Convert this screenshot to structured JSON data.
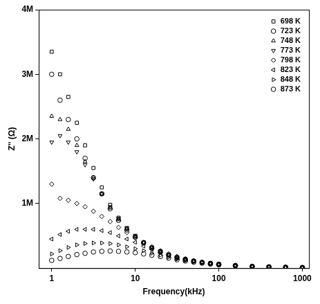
{
  "chart_data": {
    "type": "scatter",
    "x_label": "Frequency(kHz)",
    "y_label": "Z'' (Ω)",
    "log": "x",
    "grid": false,
    "legend": "upper right",
    "xlim": [
      0.72,
      1200
    ],
    "xticks": [
      1,
      10,
      100,
      1000
    ],
    "ylim": [
      0,
      4000000
    ],
    "yticks": [
      {
        "value": 1000000,
        "label": "1M"
      },
      {
        "value": 2000000,
        "label": "2M"
      },
      {
        "value": 3000000,
        "label": "3M"
      },
      {
        "value": 4000000,
        "label": "4M"
      }
    ],
    "x": [
      1,
      1.26,
      1.58,
      2,
      2.51,
      3.16,
      3.98,
      5.01,
      6.31,
      7.94,
      10,
      12.6,
      15.8,
      20,
      25.1,
      31.6,
      39.8,
      50.1,
      63.1,
      79.4,
      100,
      158,
      251,
      398,
      631,
      1000
    ],
    "series": [
      {
        "name": "698 K",
        "color": "#000000",
        "marker": "square",
        "values": [
          3350000,
          3000000,
          2650000,
          2250000,
          1900000,
          1550000,
          1250000,
          980000,
          780000,
          620000,
          500000,
          400000,
          320000,
          260000,
          210000,
          170000,
          140000,
          110000,
          90000,
          75000,
          60000,
          40000,
          28000,
          20000,
          14000,
          10000
        ]
      },
      {
        "name": "723 K",
        "color": "#000000",
        "marker": "circle",
        "values": [
          3000000,
          2600000,
          2300000,
          2000000,
          1700000,
          1400000,
          1150000,
          920000,
          740000,
          590000,
          480000,
          390000,
          310000,
          250000,
          200000,
          160000,
          130000,
          110000,
          90000,
          74000,
          60000,
          40000,
          28000,
          20000,
          14000,
          10000
        ]
      },
      {
        "name": "748 K",
        "color": "#000000",
        "marker": "triangle_up",
        "values": [
          2350000,
          2300000,
          2150000,
          1900000,
          1650000,
          1400000,
          1150000,
          930000,
          750000,
          600000,
          480000,
          390000,
          310000,
          250000,
          200000,
          160000,
          130000,
          110000,
          88000,
          72000,
          58000,
          40000,
          28000,
          20000,
          14000,
          10000
        ]
      },
      {
        "name": "773 K",
        "color": "#000000",
        "marker": "triangle_down",
        "values": [
          1950000,
          2050000,
          1950000,
          1800000,
          1600000,
          1380000,
          1150000,
          950000,
          770000,
          620000,
          500000,
          400000,
          320000,
          260000,
          210000,
          170000,
          140000,
          110000,
          90000,
          74000,
          60000,
          40000,
          28000,
          20000,
          14000,
          10000
        ]
      },
      {
        "name": "798 K",
        "color": "#000000",
        "marker": "diamond",
        "values": [
          1300000,
          1080000,
          1050000,
          1000000,
          950000,
          880000,
          800000,
          720000,
          630000,
          550000,
          470000,
          400000,
          330000,
          270000,
          220000,
          180000,
          145000,
          115000,
          92000,
          75000,
          60000,
          40000,
          28000,
          20000,
          14000,
          10000
        ]
      },
      {
        "name": "823 K",
        "color": "#000000",
        "marker": "triangle_left",
        "values": [
          450000,
          520000,
          570000,
          600000,
          600000,
          600000,
          580000,
          550000,
          500000,
          450000,
          400000,
          340000,
          290000,
          240000,
          200000,
          165000,
          135000,
          110000,
          90000,
          73000,
          58000,
          39000,
          27000,
          19000,
          13000,
          9000
        ]
      },
      {
        "name": "848 K",
        "color": "#000000",
        "marker": "triangle_right",
        "values": [
          220000,
          270000,
          320000,
          360000,
          380000,
          390000,
          390000,
          380000,
          360000,
          330000,
          300000,
          270000,
          230000,
          200000,
          170000,
          140000,
          120000,
          100000,
          83000,
          68000,
          55000,
          37000,
          26000,
          18000,
          12000,
          8000
        ]
      },
      {
        "name": "873 K",
        "color": "#000000",
        "marker": "circle",
        "values": [
          120000,
          150000,
          180000,
          210000,
          230000,
          250000,
          260000,
          265000,
          260000,
          250000,
          240000,
          220000,
          200000,
          180000,
          155000,
          130000,
          110000,
          93000,
          77000,
          63000,
          51000,
          35000,
          24000,
          17000,
          11000,
          7000
        ]
      }
    ]
  }
}
